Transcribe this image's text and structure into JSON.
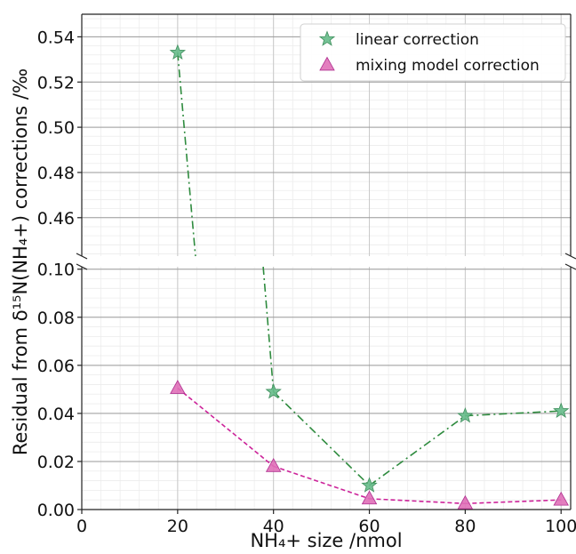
{
  "chart_data": {
    "type": "line",
    "title": "",
    "xlabel": "NH₄+ size /nmol",
    "ylabel": "Residual from δ¹⁵N(NH₄+) corrections /‰",
    "broken_y_axis": true,
    "x": [
      20,
      40,
      60,
      80,
      100
    ],
    "xlim": [
      0,
      102
    ],
    "x_ticks": [
      "0",
      "20",
      "40",
      "60",
      "80",
      "100"
    ],
    "ylim_upper": [
      0.443,
      0.55
    ],
    "ylim_lower": [
      0,
      0.101
    ],
    "y_ticks_upper": [
      "0.46",
      "0.48",
      "0.50",
      "0.52",
      "0.54"
    ],
    "y_ticks_lower": [
      "0.00",
      "0.02",
      "0.04",
      "0.06",
      "0.08",
      "0.10"
    ],
    "grid": true,
    "legend_position": "top-right",
    "series": [
      {
        "name": "linear correction",
        "values": [
          0.533,
          0.049,
          0.01,
          0.039,
          0.041
        ],
        "marker": "star",
        "line_style": "dash-dot",
        "marker_color": "#66bb8a",
        "line_color": "#2e8b3e"
      },
      {
        "name": "mixing model correction",
        "values": [
          0.0505,
          0.018,
          0.0045,
          0.0025,
          0.004
        ],
        "marker": "triangle",
        "line_style": "dashed",
        "marker_color": "#e070b8",
        "line_color": "#cc2299"
      }
    ]
  }
}
